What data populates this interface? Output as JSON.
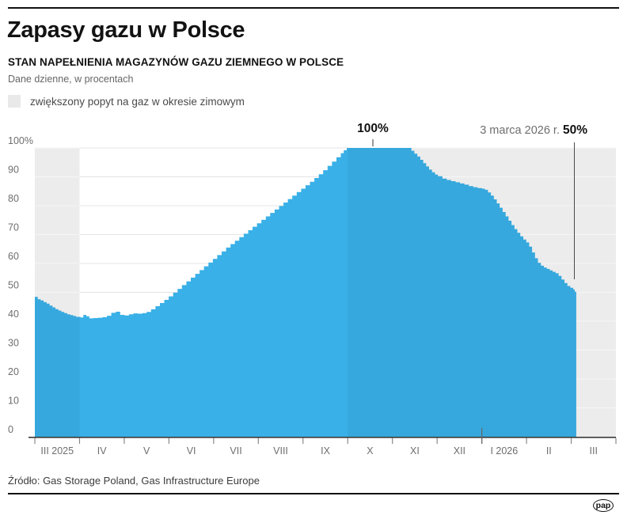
{
  "header": {
    "title": "Zapasy gazu w Polsce",
    "subtitle": "STAN NAPEŁNIENIA MAGAZYNÓW GAZU ZIEMNEGO W POLSCE",
    "note": "Dane dzienne, w procentach"
  },
  "legend": {
    "label": "zwiększony popyt na gaz w okresie zimowym"
  },
  "annotations": {
    "peak": "100%",
    "end_date": "3 marca 2026 r.",
    "end_value": "50%"
  },
  "footer": {
    "source": "Źródło: Gas Storage Poland, Gas Infrastructure Europe",
    "logo": "pap"
  },
  "colors": {
    "bar": "#39B0E7",
    "bar_mute_overlay": "rgba(0,10,30,0.05)",
    "band": "#ECECEC",
    "grid": "#E4E4E4",
    "grid_on_band": "#F6F6F6",
    "axis": "#3a3a3a",
    "tick": "#8a8a8a",
    "year_tick": "#666666",
    "text_gray": "#6E6E6E"
  },
  "chart_data": {
    "type": "area",
    "title": "STAN NAPEŁNIENIA MAGAZYNÓW GAZU ZIEMNEGO W POLSCE",
    "subtitle": "Dane dzienne, w procentach",
    "unit": "percent of storage capacity",
    "x_unit": "days since 2025-03-01",
    "x_range_days": 367,
    "ylim": [
      0,
      100
    ],
    "grid": true,
    "x_tick_labels": [
      "III 2025",
      "IV",
      "V",
      "VI",
      "VII",
      "VIII",
      "IX",
      "X",
      "XI",
      "XII",
      "I 2026",
      "II",
      "III"
    ],
    "y_tick_labels": [
      "100%",
      "90",
      "80",
      "70",
      "60",
      "50",
      "40",
      "30",
      "20",
      "10",
      "0"
    ],
    "winter_bands_month_index": [
      [
        0,
        1
      ],
      [
        7,
        13
      ]
    ],
    "year_divider_month_index": 10,
    "peak_value": 100,
    "last_value": 50,
    "last_date": "2026-03-03",
    "points": [
      [
        0,
        48.4
      ],
      [
        2,
        47.6
      ],
      [
        4,
        47.2
      ],
      [
        6,
        46.6
      ],
      [
        8,
        46.1
      ],
      [
        10,
        45.4
      ],
      [
        12,
        44.8
      ],
      [
        14,
        44.2
      ],
      [
        16,
        43.7
      ],
      [
        18,
        43.2
      ],
      [
        20,
        42.8
      ],
      [
        22,
        42.4
      ],
      [
        24,
        42.1
      ],
      [
        26,
        41.8
      ],
      [
        28,
        41.5
      ],
      [
        31,
        41.3
      ],
      [
        33,
        42.2
      ],
      [
        35,
        41.7
      ],
      [
        37,
        41.0
      ],
      [
        40,
        41.1
      ],
      [
        43,
        41.2
      ],
      [
        46,
        41.4
      ],
      [
        49,
        41.9
      ],
      [
        52,
        42.9
      ],
      [
        55,
        43.3
      ],
      [
        58,
        42.2
      ],
      [
        61,
        42.0
      ],
      [
        64,
        42.4
      ],
      [
        67,
        42.7
      ],
      [
        70,
        42.6
      ],
      [
        73,
        42.8
      ],
      [
        76,
        43.2
      ],
      [
        79,
        44.1
      ],
      [
        82,
        45.2
      ],
      [
        85,
        46.3
      ],
      [
        88,
        47.4
      ],
      [
        91,
        48.6
      ],
      [
        94,
        49.9
      ],
      [
        97,
        51.2
      ],
      [
        100,
        52.5
      ],
      [
        103,
        53.8
      ],
      [
        106,
        55.1
      ],
      [
        109,
        56.4
      ],
      [
        112,
        57.7
      ],
      [
        115,
        59.0
      ],
      [
        118,
        60.3
      ],
      [
        121,
        61.6
      ],
      [
        124,
        62.9
      ],
      [
        127,
        64.2
      ],
      [
        130,
        65.5
      ],
      [
        133,
        66.7
      ],
      [
        136,
        67.9
      ],
      [
        139,
        69.1
      ],
      [
        142,
        70.3
      ],
      [
        145,
        71.5
      ],
      [
        148,
        72.7
      ],
      [
        151,
        73.9
      ],
      [
        154,
        75.1
      ],
      [
        157,
        76.3
      ],
      [
        160,
        77.5
      ],
      [
        163,
        78.7
      ],
      [
        166,
        79.9
      ],
      [
        169,
        81.1
      ],
      [
        172,
        82.3
      ],
      [
        175,
        83.5
      ],
      [
        178,
        84.7
      ],
      [
        181,
        85.9
      ],
      [
        184,
        87.1
      ],
      [
        187,
        88.3
      ],
      [
        190,
        89.6
      ],
      [
        193,
        90.9
      ],
      [
        196,
        92.3
      ],
      [
        199,
        93.8
      ],
      [
        202,
        95.3
      ],
      [
        205,
        96.8
      ],
      [
        208,
        98.2
      ],
      [
        210,
        99.2
      ],
      [
        212,
        100
      ],
      [
        218,
        100
      ],
      [
        224,
        100
      ],
      [
        230,
        100
      ],
      [
        236,
        100
      ],
      [
        242,
        100
      ],
      [
        248,
        100
      ],
      [
        254,
        100
      ],
      [
        256,
        99.0
      ],
      [
        258,
        98.0
      ],
      [
        260,
        97.0
      ],
      [
        262,
        95.9
      ],
      [
        264,
        94.7
      ],
      [
        266,
        93.6
      ],
      [
        268,
        92.5
      ],
      [
        270,
        91.6
      ],
      [
        272,
        90.8
      ],
      [
        274,
        90.2
      ],
      [
        277,
        89.4
      ],
      [
        280,
        88.9
      ],
      [
        283,
        88.5
      ],
      [
        286,
        88.1
      ],
      [
        289,
        87.7
      ],
      [
        292,
        87.3
      ],
      [
        295,
        86.8
      ],
      [
        298,
        86.4
      ],
      [
        301,
        86.1
      ],
      [
        304,
        85.9
      ],
      [
        306,
        85.5
      ],
      [
        308,
        84.6
      ],
      [
        310,
        83.5
      ],
      [
        312,
        82.2
      ],
      [
        314,
        80.8
      ],
      [
        316,
        79.3
      ],
      [
        318,
        77.8
      ],
      [
        320,
        76.3
      ],
      [
        322,
        74.8
      ],
      [
        324,
        73.3
      ],
      [
        326,
        71.9
      ],
      [
        328,
        70.6
      ],
      [
        330,
        69.4
      ],
      [
        332,
        68.3
      ],
      [
        334,
        67.3
      ],
      [
        336,
        65.8
      ],
      [
        338,
        63.8
      ],
      [
        340,
        61.8
      ],
      [
        342,
        60.2
      ],
      [
        344,
        59.2
      ],
      [
        346,
        58.6
      ],
      [
        348,
        58.1
      ],
      [
        350,
        57.6
      ],
      [
        352,
        57.1
      ],
      [
        354,
        56.6
      ],
      [
        356,
        55.7
      ],
      [
        358,
        54.4
      ],
      [
        360,
        53.2
      ],
      [
        362,
        52.2
      ],
      [
        364,
        51.6
      ],
      [
        366,
        51.0
      ],
      [
        367,
        50.2
      ]
    ]
  }
}
